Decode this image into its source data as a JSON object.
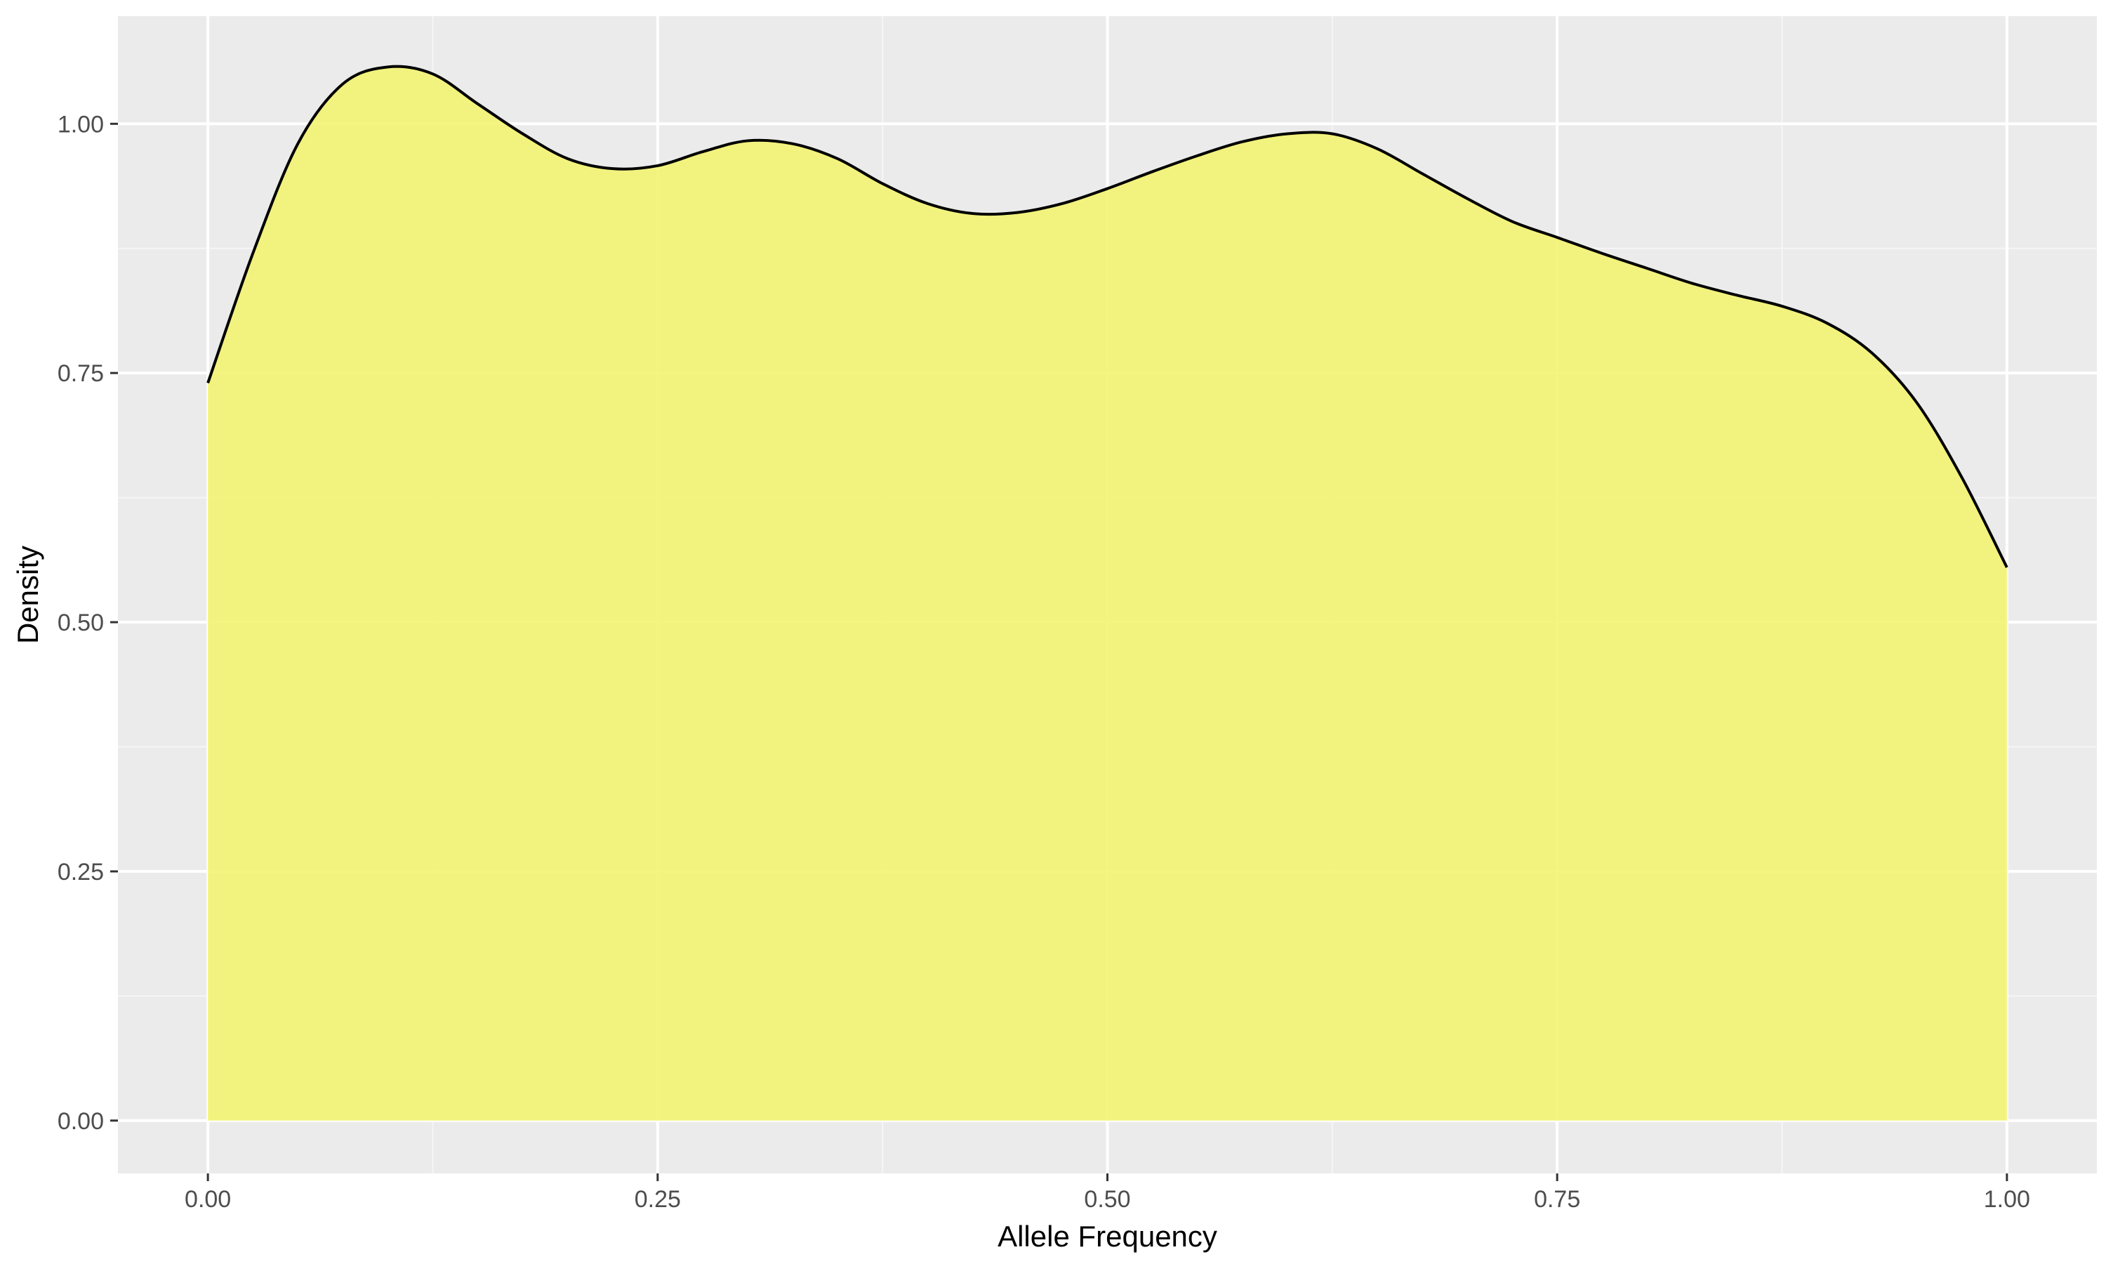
{
  "chart_data": {
    "type": "area",
    "title": "",
    "xlabel": "Allele Frequency",
    "ylabel": "Density",
    "xlim": [
      -0.05,
      1.05
    ],
    "ylim": [
      -0.053,
      1.108
    ],
    "x_ticks": [
      0.0,
      0.25,
      0.5,
      0.75,
      1.0
    ],
    "x_tick_labels": [
      "0.00",
      "0.25",
      "0.50",
      "0.75",
      "1.00"
    ],
    "y_ticks": [
      0.0,
      0.25,
      0.5,
      0.75,
      1.0
    ],
    "y_tick_labels": [
      "0.00",
      "0.25",
      "0.50",
      "0.75",
      "1.00"
    ],
    "grid": true,
    "series": [
      {
        "x": [
          0.0,
          0.025,
          0.05,
          0.075,
          0.1,
          0.125,
          0.15,
          0.175,
          0.2,
          0.225,
          0.25,
          0.275,
          0.3,
          0.325,
          0.35,
          0.375,
          0.4,
          0.425,
          0.45,
          0.475,
          0.5,
          0.525,
          0.55,
          0.575,
          0.6,
          0.625,
          0.65,
          0.675,
          0.7,
          0.725,
          0.75,
          0.775,
          0.8,
          0.825,
          0.85,
          0.875,
          0.9,
          0.925,
          0.95,
          0.975,
          1.0
        ],
        "y": [
          0.74,
          0.87,
          0.98,
          1.04,
          1.057,
          1.05,
          1.02,
          0.99,
          0.965,
          0.955,
          0.958,
          0.972,
          0.983,
          0.98,
          0.965,
          0.94,
          0.92,
          0.91,
          0.911,
          0.92,
          0.935,
          0.952,
          0.968,
          0.982,
          0.99,
          0.99,
          0.975,
          0.95,
          0.925,
          0.902,
          0.886,
          0.87,
          0.855,
          0.84,
          0.828,
          0.817,
          0.8,
          0.77,
          0.72,
          0.645,
          0.555
        ]
      }
    ],
    "colors": {
      "panel_background": "#ebebeb",
      "grid_major": "#ffffff",
      "grid_minor": "#f6f6f6",
      "fill": "#f3f372",
      "line": "#000000",
      "tick_label": "#4d4d4d",
      "tick_mark": "#333333"
    }
  }
}
